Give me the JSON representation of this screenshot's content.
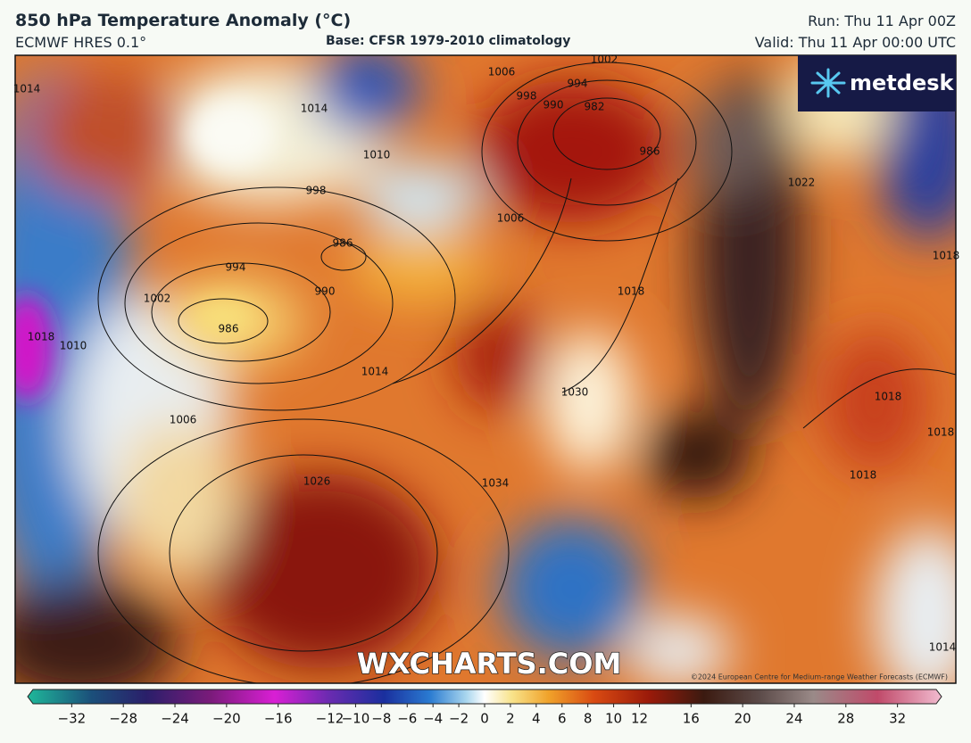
{
  "header": {
    "title": "850 hPa Temperature Anomaly (°C)",
    "model": "ECMWF HRES 0.1°",
    "base": "Base: CFSR 1979-2010 climatology",
    "run": "Run: Thu 11 Apr 00Z",
    "valid": "Valid: Thu 11 Apr 00:00 UTC"
  },
  "logo": "metdesk",
  "watermark": "WXCHARTS.COM",
  "copyright": "©2024 European Centre for Medium-range Weather Forecasts (ECMWF)",
  "isobar_labels": [
    "1014",
    "1014",
    "1010",
    "1006",
    "1002",
    "994",
    "998",
    "990",
    "982",
    "986",
    "998",
    "986",
    "994",
    "1002",
    "990",
    "986",
    "1006",
    "1014",
    "1018",
    "1030",
    "1006",
    "1026",
    "1034",
    "1022",
    "1018",
    "1018",
    "1018",
    "1018",
    "1014",
    "1018",
    "1010"
  ],
  "colorbar": {
    "lim": [
      -35,
      35
    ],
    "ticks": [
      {
        "value": -32,
        "label": "−32"
      },
      {
        "value": -28,
        "label": "−28"
      },
      {
        "value": -24,
        "label": "−24"
      },
      {
        "value": -20,
        "label": "−20"
      },
      {
        "value": -16,
        "label": "−16"
      },
      {
        "value": -12,
        "label": "−12"
      },
      {
        "value": -10,
        "label": "−10"
      },
      {
        "value": -8,
        "label": "−8"
      },
      {
        "value": -6,
        "label": "−6"
      },
      {
        "value": -4,
        "label": "−4"
      },
      {
        "value": -2,
        "label": "−2"
      },
      0,
      2,
      4,
      6,
      8,
      10,
      12,
      16,
      20,
      24,
      28,
      32
    ]
  }
}
